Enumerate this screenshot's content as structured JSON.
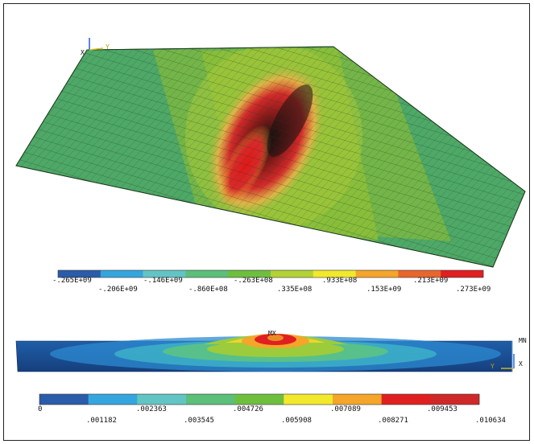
{
  "axis_labels": {
    "top_y": "Y",
    "top_x": "X",
    "bottom_mx": "MX",
    "bottom_mn": "MN",
    "bottom_y": "Y",
    "bottom_x": "X"
  },
  "stress_legend": {
    "colors": [
      "#2a5caa",
      "#35a6dd",
      "#62c5c4",
      "#5cbf7a",
      "#6fbf3f",
      "#b3d335",
      "#f2e82c",
      "#f4a52a",
      "#e8662c",
      "#e02020"
    ],
    "labels_top": [
      "-.265E+09",
      "-.146E+09",
      "-.263E+08",
      ".933E+08",
      ".213E+09"
    ],
    "labels_bottom": [
      "-.206E+09",
      "-.860E+08",
      ".335E+08",
      ".153E+09",
      ".273E+09"
    ]
  },
  "displacement_legend": {
    "colors": [
      "#2a5caa",
      "#35a6dd",
      "#62c5c4",
      "#5cbf7a",
      "#6fbf3f",
      "#f2e82c",
      "#f4a52a",
      "#e02020",
      "#d02828"
    ],
    "labels_top": [
      "0",
      ".002363",
      ".004726",
      ".007089",
      ".009453"
    ],
    "labels_bottom": [
      ".001182",
      ".003545",
      ".005908",
      ".008271",
      ".010634"
    ]
  }
}
